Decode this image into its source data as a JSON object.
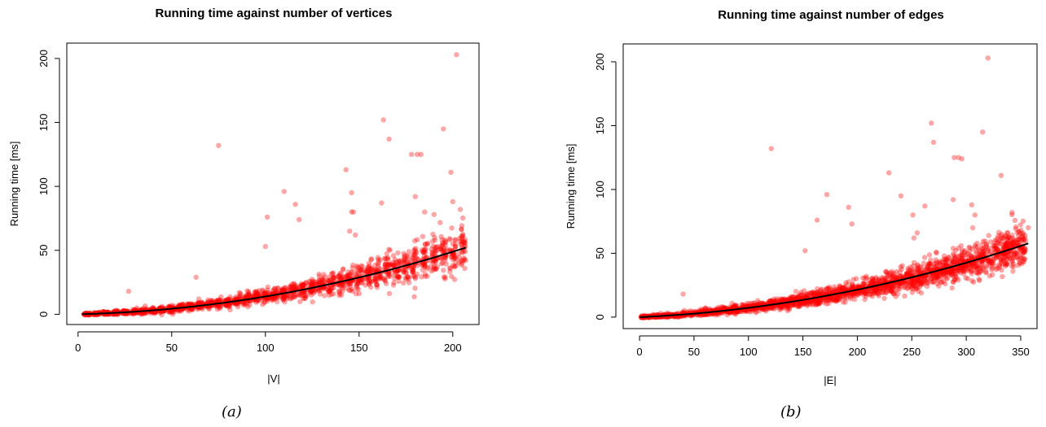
{
  "chart_data": [
    {
      "type": "scatter",
      "title": "Running time against number of vertices",
      "xlabel": "|V|",
      "ylabel": "Running time [ms]",
      "xlim": [
        -6,
        214
      ],
      "ylim": [
        -8,
        212
      ],
      "xticks": [
        0,
        50,
        100,
        150,
        200
      ],
      "yticks": [
        0,
        50,
        100,
        150,
        200
      ],
      "grid": false,
      "point_color": "#ff0000",
      "fit_color": "#000000",
      "fit": {
        "type": "polynomial",
        "degree": 2,
        "x_start": 2,
        "x_end": 207,
        "points": [
          [
            2,
            0.3
          ],
          [
            50,
            4
          ],
          [
            100,
            14
          ],
          [
            150,
            29
          ],
          [
            207,
            52
          ]
        ]
      },
      "cluster_step": 5,
      "cluster_start": 5,
      "cluster_end": 205,
      "points_per_cluster": 40,
      "outliers": [
        [
          75,
          132
        ],
        [
          110,
          96
        ],
        [
          116,
          86
        ],
        [
          101,
          76
        ],
        [
          100,
          53
        ],
        [
          118,
          74
        ],
        [
          63,
          29
        ],
        [
          27,
          18
        ],
        [
          143,
          113
        ],
        [
          146,
          95
        ],
        [
          146,
          80
        ],
        [
          147,
          80
        ],
        [
          145,
          65
        ],
        [
          148,
          62
        ],
        [
          163,
          152
        ],
        [
          166,
          137
        ],
        [
          178,
          125
        ],
        [
          181,
          125
        ],
        [
          183,
          125
        ],
        [
          162,
          87
        ],
        [
          180,
          92
        ],
        [
          195,
          145
        ],
        [
          199,
          111
        ],
        [
          202,
          203
        ],
        [
          200,
          88
        ],
        [
          204,
          82
        ],
        [
          185,
          80
        ],
        [
          190,
          78
        ]
      ],
      "caption": "(a)"
    },
    {
      "type": "scatter",
      "title": "Running time against number of edges",
      "xlabel": "|E|",
      "ylabel": "Running time [ms]",
      "xlim": [
        -15,
        365
      ],
      "ylim": [
        -9,
        214
      ],
      "xticks": [
        0,
        50,
        100,
        150,
        200,
        250,
        300,
        350
      ],
      "yticks": [
        0,
        50,
        100,
        150,
        200
      ],
      "grid": false,
      "point_color": "#ff0000",
      "fit_color": "#000000",
      "fit": {
        "type": "polynomial",
        "degree": 2,
        "x_start": 0,
        "x_end": 357,
        "points": [
          [
            0,
            0
          ],
          [
            100,
            7
          ],
          [
            200,
            22
          ],
          [
            300,
            42
          ],
          [
            357,
            58
          ]
        ]
      },
      "x_range": [
        1,
        355
      ],
      "points_count": 2200,
      "outliers": [
        [
          121,
          132
        ],
        [
          172,
          96
        ],
        [
          163,
          76
        ],
        [
          152,
          52
        ],
        [
          192,
          86
        ],
        [
          195,
          73
        ],
        [
          40,
          18
        ],
        [
          229,
          113
        ],
        [
          240,
          95
        ],
        [
          251,
          80
        ],
        [
          255,
          66
        ],
        [
          252,
          62
        ],
        [
          268,
          152
        ],
        [
          270,
          137
        ],
        [
          289,
          125
        ],
        [
          293,
          125
        ],
        [
          296,
          124
        ],
        [
          262,
          87
        ],
        [
          288,
          92
        ],
        [
          315,
          145
        ],
        [
          320,
          203
        ],
        [
          332,
          111
        ],
        [
          305,
          88
        ],
        [
          342,
          82
        ],
        [
          308,
          80
        ],
        [
          357,
          70
        ]
      ],
      "caption": "(b)"
    }
  ]
}
